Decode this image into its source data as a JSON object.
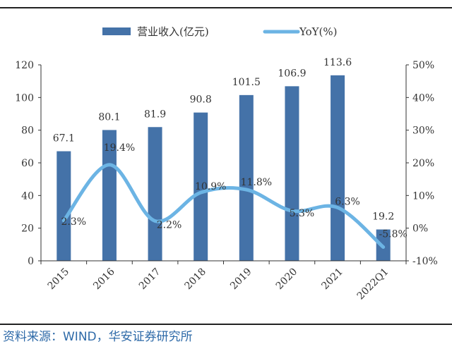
{
  "chart_data": {
    "type": "bar+line",
    "categories": [
      "2015",
      "2016",
      "2017",
      "2018",
      "2019",
      "2020",
      "2021",
      "2022Q1"
    ],
    "series": [
      {
        "name": "营业收入(亿元)",
        "type": "bar",
        "axis": "left",
        "color": "#4472a8",
        "values": [
          67.1,
          80.1,
          81.9,
          90.8,
          101.5,
          106.9,
          113.6,
          19.2
        ],
        "labels": [
          "67.1",
          "80.1",
          "81.9",
          "90.8",
          "101.5",
          "106.9",
          "113.6",
          "19.2"
        ]
      },
      {
        "name": "YoY(%)",
        "type": "line",
        "axis": "right",
        "color": "#6cb4e4",
        "values": [
          2.3,
          19.4,
          2.2,
          10.9,
          11.8,
          5.3,
          6.3,
          -5.8
        ],
        "labels": [
          "2.3%",
          "19.4%",
          "2.2%",
          "10.9%",
          "11.8%",
          "5.3%",
          "6.3%",
          "-5.8%"
        ]
      }
    ],
    "left_axis": {
      "ylim": [
        0,
        120
      ],
      "ticks": [
        "0",
        "20",
        "40",
        "60",
        "80",
        "100",
        "120"
      ]
    },
    "right_axis": {
      "ylim": [
        -10,
        50
      ],
      "ticks": [
        "-10%",
        "0%",
        "10%",
        "20%",
        "30%",
        "40%",
        "50%"
      ]
    },
    "legend": {
      "placement": "top",
      "entries": [
        "营业收入(亿元)",
        "YoY(%)"
      ]
    }
  },
  "source": "资料来源：WIND，华安证券研究所"
}
